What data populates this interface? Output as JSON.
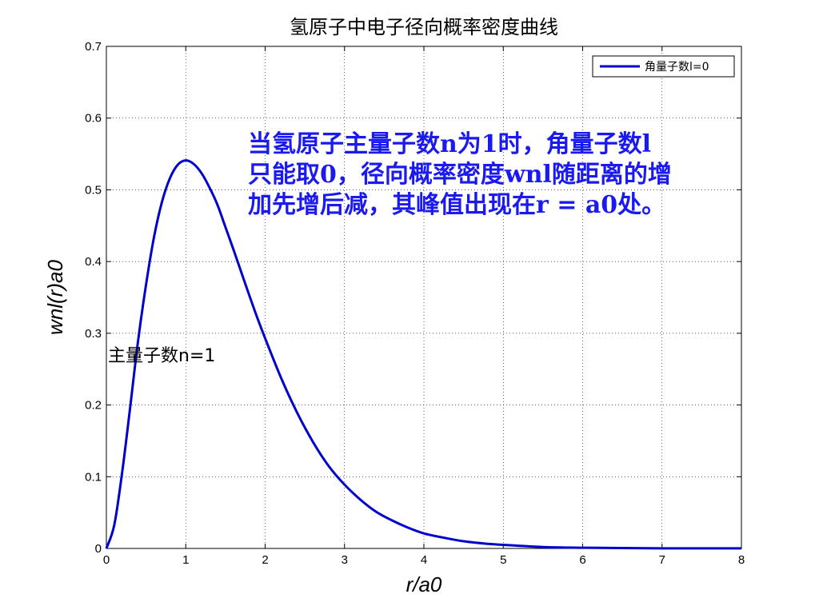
{
  "chart_data": {
    "type": "line",
    "title": "氢原子中电子径向概率密度曲线",
    "xlabel": "r/a0",
    "ylabel": "wnl(r)a0",
    "xlim": [
      0,
      8
    ],
    "ylim": [
      0,
      0.7
    ],
    "x_ticks": [
      "0",
      "1",
      "2",
      "3",
      "4",
      "5",
      "6",
      "7",
      "8"
    ],
    "y_ticks": [
      "0",
      "0.1",
      "0.2",
      "0.3",
      "0.4",
      "0.5",
      "0.6",
      "0.7"
    ],
    "grid": true,
    "legend_position": "top-right",
    "series": [
      {
        "name": "角量子数l=0",
        "color": "#0000cc",
        "x": [
          0,
          0.1,
          0.2,
          0.3,
          0.4,
          0.5,
          0.6,
          0.7,
          0.8,
          0.9,
          1.0,
          1.1,
          1.2,
          1.3,
          1.4,
          1.5,
          1.6,
          1.7,
          1.8,
          1.9,
          2.0,
          2.2,
          2.4,
          2.6,
          2.8,
          3.0,
          3.2,
          3.4,
          3.6,
          3.8,
          4.0,
          4.25,
          4.5,
          4.75,
          5.0,
          5.5,
          6.0,
          6.5,
          7.0,
          7.5,
          8.0
        ],
        "y": [
          0,
          0.033,
          0.107,
          0.197,
          0.29,
          0.368,
          0.434,
          0.483,
          0.516,
          0.535,
          0.541,
          0.536,
          0.523,
          0.503,
          0.479,
          0.448,
          0.417,
          0.385,
          0.353,
          0.322,
          0.293,
          0.238,
          0.19,
          0.149,
          0.115,
          0.089,
          0.068,
          0.051,
          0.039,
          0.029,
          0.021,
          0.015,
          0.01,
          0.007,
          0.005,
          0.002,
          0.001,
          0.0005,
          0.0002,
          0.0001,
          0.0001
        ]
      }
    ],
    "annotations": {
      "main_line1": "当氢原子主量子数n为1时，角量子数l",
      "main_line2": "只能取0，径向概率密度wnl随距离的增",
      "main_line3": "加先增后减，其峰值出现在r = a0处。",
      "secondary": "主量子数n=1"
    }
  }
}
